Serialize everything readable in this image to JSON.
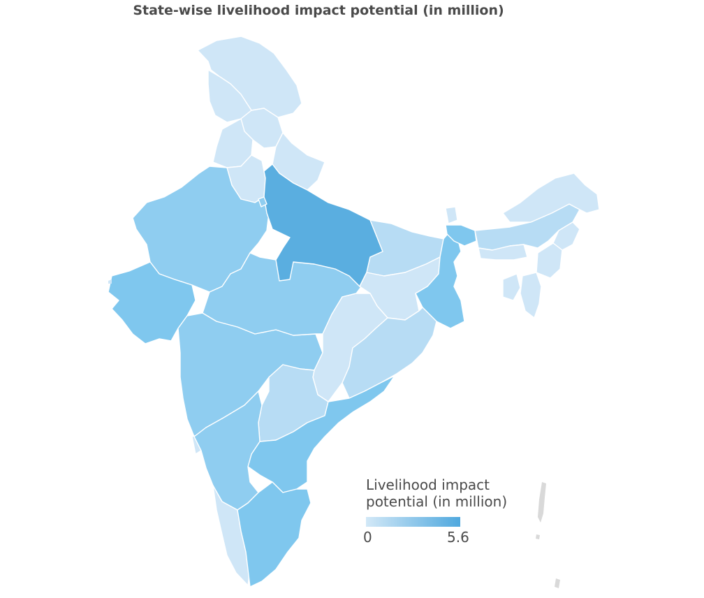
{
  "map": {
    "title": "State-wise livelihood impact potential (in million)",
    "legend": {
      "title": "Livelihood impact potential (in million)",
      "min_label": "0",
      "max_label": "5.6",
      "min": 0,
      "max": 5.6,
      "color_low": "#d2e8f7",
      "color_high": "#4fa8de"
    },
    "colors": {
      "lightest": "#cfe6f7",
      "light": "#b7dcf4",
      "medium": "#8fcdf0",
      "medium_dark": "#7fc7ee",
      "darkest": "#5aaee0",
      "island_gray": "#d9d9d9",
      "border": "#ffffff"
    }
  }
}
